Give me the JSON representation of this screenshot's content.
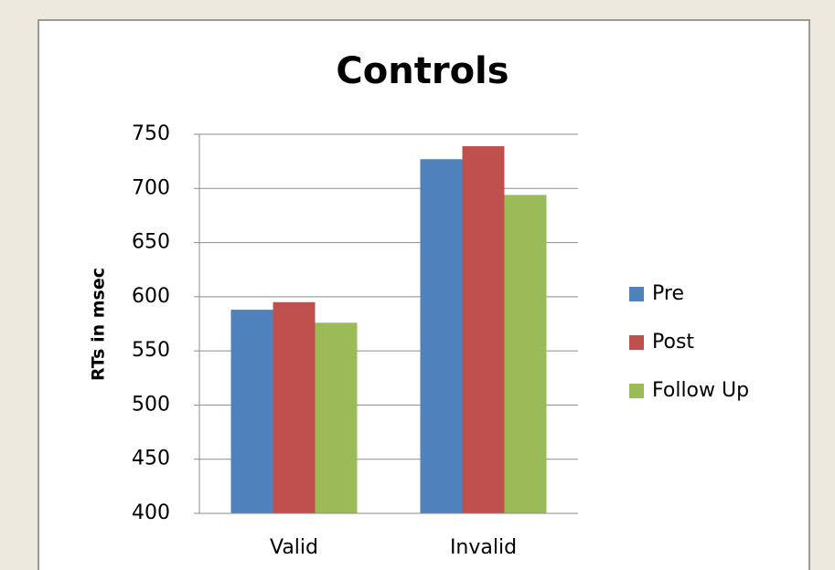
{
  "chart_data": {
    "type": "bar",
    "title": "Controls",
    "y_label": "RTs in msec",
    "categories": [
      "Valid",
      "Invalid"
    ],
    "series": [
      {
        "name": "Pre",
        "color": "#4f81bd",
        "values": [
          588,
          727
        ]
      },
      {
        "name": "Post",
        "color": "#c0504d",
        "values": [
          595,
          739
        ]
      },
      {
        "name": "Follow Up",
        "color": "#9bbb59",
        "values": [
          576,
          694
        ]
      }
    ],
    "ylim": [
      400,
      750
    ],
    "yticks": [
      400,
      450,
      500,
      550,
      600,
      650,
      700,
      750
    ],
    "grid": true,
    "legend": "right"
  }
}
